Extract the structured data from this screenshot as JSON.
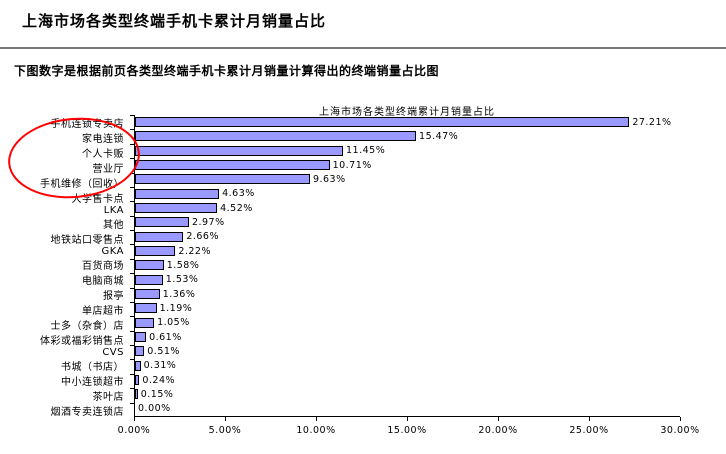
{
  "header": {
    "title": "上海市场各类型终端手机卡累计月销量占比",
    "subtitle": "下图数字是根据前页各类型终端手机卡累计月销量计算得出的终端销量占比图"
  },
  "chart_data": {
    "type": "bar",
    "orientation": "horizontal",
    "title": "上海市场各类型终端累计月销量占比",
    "categories": [
      "手机连锁专卖店",
      "家电连锁",
      "个人卡贩",
      "营业厅",
      "手机维修（回收）",
      "大学售卡点",
      "LKA",
      "其他",
      "地铁站口零售点",
      "GKA",
      "百货商场",
      "电脑商城",
      "报亭",
      "单店超市",
      "士多（杂食）店",
      "体彩或福彩销售点",
      "CVS",
      "书城（书店）",
      "中小连锁超市",
      "茶叶店",
      "烟酒专卖连锁店"
    ],
    "values": [
      27.21,
      15.47,
      11.45,
      10.71,
      9.63,
      4.63,
      4.52,
      2.97,
      2.66,
      2.22,
      1.58,
      1.53,
      1.36,
      1.19,
      1.05,
      0.61,
      0.51,
      0.31,
      0.24,
      0.15,
      0.0
    ],
    "value_labels": [
      "27.21%",
      "15.47%",
      "11.45%",
      "10.71%",
      "9.63%",
      "4.63%",
      "4.52%",
      "2.97%",
      "2.66%",
      "2.22%",
      "1.58%",
      "1.53%",
      "1.36%",
      "1.19%",
      "1.05%",
      "0.61%",
      "0.51%",
      "0.31%",
      "0.24%",
      "0.15%",
      "0.00%"
    ],
    "xlabel": "",
    "ylabel": "",
    "xlim": [
      0,
      30
    ],
    "x_ticks": [
      0,
      5,
      10,
      15,
      20,
      25,
      30
    ],
    "x_tick_labels": [
      "0.00%",
      "5.00%",
      "10.00%",
      "15.00%",
      "20.00%",
      "25.00%",
      "30.00%"
    ],
    "grid": false,
    "legend": false,
    "bar_color": "#9999FF",
    "bar_border_color": "#000000"
  },
  "annotation": {
    "shape": "ellipse",
    "color": "#FF0000",
    "circled_categories": [
      "手机连锁专卖店",
      "家电连锁",
      "个人卡贩",
      "营业厅",
      "手机维修（回收）"
    ]
  }
}
